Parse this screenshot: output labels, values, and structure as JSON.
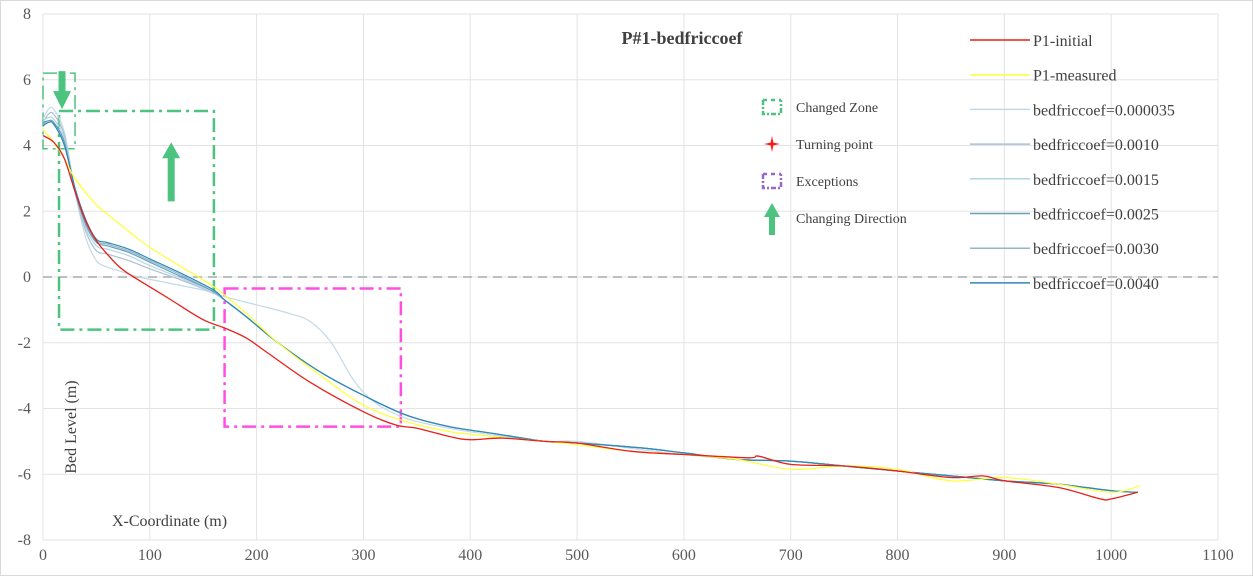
{
  "chart_data": {
    "type": "line",
    "title": "P#1-bedfriccoef",
    "xlabel": "X-Coordinate (m)",
    "ylabel": "Bed Level (m)",
    "xlim": [
      0,
      1100
    ],
    "ylim": [
      -8,
      8
    ],
    "xticks": [
      0,
      100,
      200,
      300,
      400,
      500,
      600,
      700,
      800,
      900,
      1000,
      1100
    ],
    "yticks": [
      -8,
      -6,
      -4,
      -2,
      0,
      2,
      4,
      6,
      8
    ],
    "grid": true,
    "legend_position": "right",
    "zero_line": {
      "y": 0,
      "color": "#bfbfbf",
      "style": "dashed"
    },
    "series": [
      {
        "name": "P1-initial",
        "color": "#e8201a",
        "x": [
          0,
          10,
          20,
          30,
          40,
          50,
          60,
          70,
          80,
          100,
          120,
          150,
          170,
          190,
          210,
          250,
          300,
          330,
          350,
          380,
          400,
          430,
          470,
          500,
          550,
          600,
          660,
          670,
          700,
          750,
          800,
          850,
          880,
          900,
          950,
          990,
          1000,
          1025
        ],
        "y": [
          4.3,
          4.1,
          3.6,
          2.6,
          1.7,
          1.1,
          0.7,
          0.35,
          0.1,
          -0.3,
          -0.7,
          -1.3,
          -1.55,
          -1.85,
          -2.3,
          -3.2,
          -4.1,
          -4.5,
          -4.6,
          -4.85,
          -4.95,
          -4.9,
          -5.0,
          -5.05,
          -5.3,
          -5.4,
          -5.5,
          -5.45,
          -5.7,
          -5.75,
          -5.9,
          -6.1,
          -6.05,
          -6.2,
          -6.4,
          -6.75,
          -6.75,
          -6.55
        ]
      },
      {
        "name": "P1-measured",
        "color": "#ffff33",
        "x": [
          0,
          10,
          20,
          30,
          50,
          80,
          100,
          130,
          160,
          190,
          220,
          260,
          300,
          340,
          380,
          420,
          470,
          500,
          550,
          600,
          650,
          700,
          750,
          800,
          850,
          900,
          950,
          1000,
          1027
        ],
        "y": [
          4.5,
          4.1,
          3.6,
          3.0,
          2.2,
          1.4,
          0.9,
          0.3,
          -0.3,
          -1.1,
          -2.0,
          -3.0,
          -3.9,
          -4.4,
          -4.7,
          -4.85,
          -5.0,
          -5.1,
          -5.3,
          -5.4,
          -5.55,
          -5.85,
          -5.75,
          -5.85,
          -6.2,
          -6.1,
          -6.3,
          -6.55,
          -6.35
        ]
      },
      {
        "name": "bedfriccoef=0.000035",
        "color": "#c4d9e6",
        "x": [
          0,
          5,
          10,
          20,
          30,
          40,
          50,
          60,
          70,
          90,
          120,
          150,
          170,
          200,
          230,
          250,
          270,
          290,
          310,
          340,
          380,
          420,
          470,
          500,
          560,
          600,
          650,
          700,
          750,
          800,
          850,
          900,
          950,
          1000,
          1025
        ],
        "y": [
          4.8,
          5.1,
          5.1,
          4.4,
          2.6,
          1.2,
          0.5,
          0.3,
          0.2,
          0.0,
          -0.2,
          -0.4,
          -0.6,
          -0.85,
          -1.1,
          -1.35,
          -2.0,
          -3.1,
          -3.8,
          -4.3,
          -4.6,
          -4.8,
          -5.0,
          -5.0,
          -5.25,
          -5.4,
          -5.55,
          -5.6,
          -5.75,
          -5.9,
          -6.05,
          -6.2,
          -6.3,
          -6.5,
          -6.55
        ]
      },
      {
        "name": "bedfriccoef=0.0010",
        "color": "#a9c1d6",
        "x": [
          0,
          5,
          10,
          20,
          30,
          40,
          50,
          60,
          80,
          100,
          130,
          160,
          170,
          190,
          220,
          260,
          300,
          340,
          380,
          420,
          470,
          500,
          560,
          600,
          650,
          700,
          750,
          800,
          850,
          900,
          950,
          1000,
          1025
        ],
        "y": [
          4.7,
          4.95,
          4.95,
          4.3,
          2.6,
          1.4,
          0.8,
          0.7,
          0.5,
          0.25,
          -0.1,
          -0.5,
          -0.7,
          -1.2,
          -2.0,
          -2.9,
          -3.6,
          -4.2,
          -4.55,
          -4.75,
          -5.0,
          -5.05,
          -5.2,
          -5.35,
          -5.55,
          -5.6,
          -5.75,
          -5.9,
          -6.05,
          -6.2,
          -6.3,
          -6.5,
          -6.55
        ]
      },
      {
        "name": "bedfriccoef=0.0015",
        "color": "#b3d4e6",
        "x": [
          0,
          5,
          10,
          20,
          30,
          40,
          50,
          60,
          80,
          100,
          130,
          160,
          170,
          190,
          220,
          260,
          300,
          340,
          380,
          420,
          470,
          500,
          560,
          600,
          650,
          700,
          750,
          800,
          850,
          900,
          950,
          1000,
          1025
        ],
        "y": [
          4.75,
          4.85,
          4.8,
          4.2,
          2.6,
          1.5,
          0.95,
          0.85,
          0.65,
          0.35,
          -0.05,
          -0.5,
          -0.7,
          -1.2,
          -2.0,
          -2.9,
          -3.6,
          -4.2,
          -4.55,
          -4.75,
          -5.0,
          -5.05,
          -5.2,
          -5.35,
          -5.55,
          -5.6,
          -5.75,
          -5.9,
          -6.05,
          -6.2,
          -6.3,
          -6.5,
          -6.55
        ]
      },
      {
        "name": "bedfriccoef=0.0025",
        "color": "#6b9eb8",
        "x": [
          0,
          5,
          10,
          20,
          30,
          40,
          50,
          60,
          80,
          100,
          130,
          160,
          170,
          190,
          220,
          260,
          300,
          340,
          380,
          420,
          470,
          500,
          560,
          600,
          650,
          700,
          750,
          800,
          850,
          900,
          950,
          1000,
          1025
        ],
        "y": [
          4.7,
          4.75,
          4.7,
          4.1,
          2.6,
          1.6,
          1.05,
          0.95,
          0.75,
          0.45,
          0.0,
          -0.45,
          -0.7,
          -1.2,
          -2.0,
          -2.9,
          -3.6,
          -4.2,
          -4.55,
          -4.75,
          -5.0,
          -5.05,
          -5.2,
          -5.35,
          -5.55,
          -5.6,
          -5.75,
          -5.9,
          -6.05,
          -6.2,
          -6.3,
          -6.5,
          -6.55
        ]
      },
      {
        "name": "bedfriccoef=0.0030",
        "color": "#8fb7cc",
        "x": [
          0,
          5,
          10,
          20,
          30,
          40,
          50,
          60,
          80,
          100,
          130,
          160,
          170,
          190,
          220,
          260,
          300,
          340,
          380,
          420,
          470,
          500,
          560,
          600,
          650,
          700,
          750,
          800,
          850,
          900,
          950,
          1000,
          1025
        ],
        "y": [
          4.65,
          4.75,
          4.7,
          4.1,
          2.7,
          1.7,
          1.1,
          1.0,
          0.8,
          0.5,
          0.05,
          -0.45,
          -0.7,
          -1.2,
          -2.0,
          -2.9,
          -3.6,
          -4.2,
          -4.55,
          -4.75,
          -5.0,
          -5.05,
          -5.2,
          -5.35,
          -5.55,
          -5.6,
          -5.75,
          -5.9,
          -6.05,
          -6.2,
          -6.3,
          -6.5,
          -6.55
        ]
      },
      {
        "name": "bedfriccoef=0.0040",
        "color": "#2e8ab8",
        "x": [
          0,
          5,
          10,
          20,
          30,
          40,
          50,
          60,
          80,
          100,
          130,
          160,
          170,
          190,
          220,
          260,
          300,
          340,
          380,
          420,
          470,
          500,
          560,
          600,
          650,
          700,
          750,
          800,
          850,
          900,
          950,
          1000,
          1025
        ],
        "y": [
          4.6,
          4.7,
          4.65,
          4.0,
          2.7,
          1.75,
          1.15,
          1.05,
          0.85,
          0.55,
          0.1,
          -0.4,
          -0.7,
          -1.2,
          -2.0,
          -2.9,
          -3.6,
          -4.2,
          -4.55,
          -4.75,
          -5.0,
          -5.05,
          -5.2,
          -5.35,
          -5.55,
          -5.6,
          -5.75,
          -5.9,
          -6.05,
          -6.2,
          -6.3,
          -6.5,
          -6.55
        ]
      }
    ],
    "annotation_legend": [
      {
        "label": "Changed Zone",
        "symbol": "green-dashdot-bracket",
        "color": "#4cc37f"
      },
      {
        "label": "Turning point",
        "symbol": "red-star",
        "color": "#ff1a1a"
      },
      {
        "label": "Exceptions",
        "symbol": "purple-dashdot-bracket",
        "color": "#9966cc"
      },
      {
        "label": "Changing Direction",
        "symbol": "green-up-arrow",
        "color": "#4cc37f"
      }
    ],
    "annotations": {
      "changed_zones": [
        {
          "x": [
            0,
            30
          ],
          "y": [
            3.9,
            6.2
          ],
          "color": "#4cc37f",
          "arrow": "down"
        },
        {
          "x": [
            15,
            160
          ],
          "y": [
            -1.6,
            5.05
          ],
          "color": "#4cc37f",
          "arrow": "up"
        }
      ],
      "exceptions": [
        {
          "x": [
            170,
            335
          ],
          "y": [
            -4.55,
            -0.35
          ],
          "color": "#ff4fe3"
        }
      ]
    }
  }
}
